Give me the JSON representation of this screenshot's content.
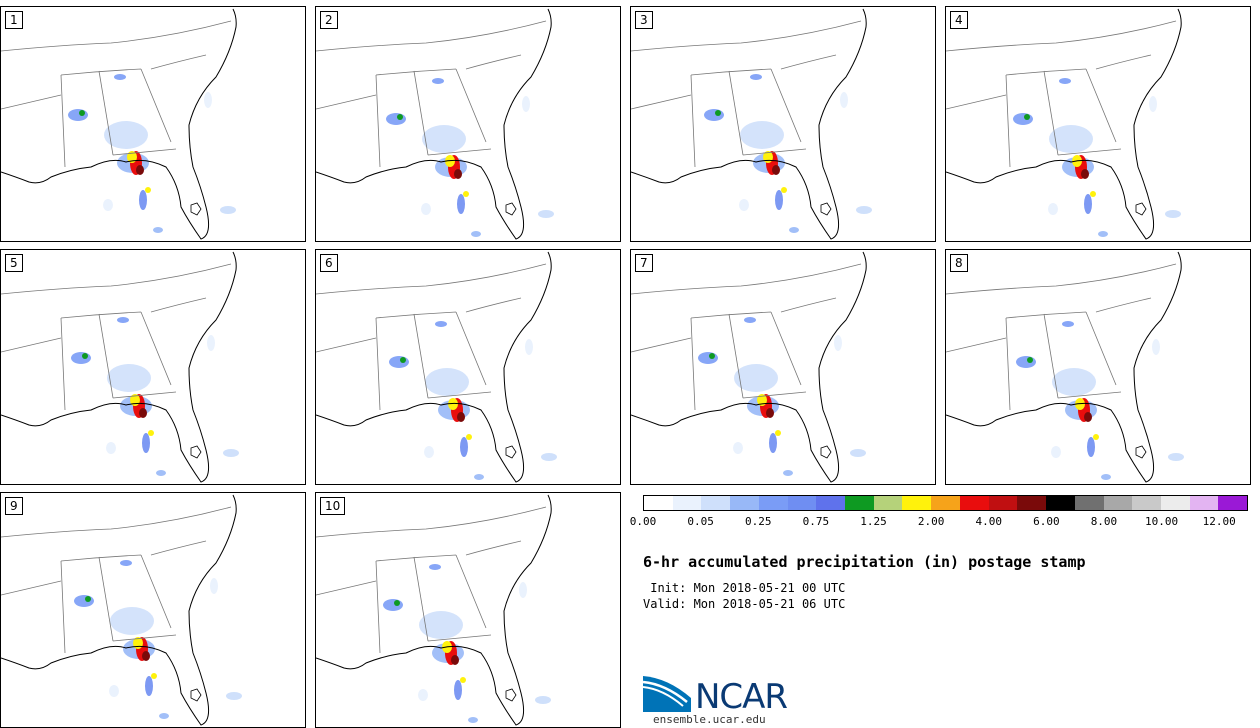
{
  "panels": [
    {
      "label": "1"
    },
    {
      "label": "2"
    },
    {
      "label": "3"
    },
    {
      "label": "4"
    },
    {
      "label": "5"
    },
    {
      "label": "6"
    },
    {
      "label": "7"
    },
    {
      "label": "8"
    },
    {
      "label": "9"
    },
    {
      "label": "10"
    }
  ],
  "colorbar": {
    "colors": [
      "#ffffff",
      "#eaf2fd",
      "#cfe0fb",
      "#98b8f7",
      "#7a9cf6",
      "#6f8ef2",
      "#5f72ec",
      "#0e9a22",
      "#b5d27a",
      "#fff20c",
      "#f6a31a",
      "#e90d0d",
      "#c00f11",
      "#7a0a0a",
      "#000000",
      "#707070",
      "#a8a8a8",
      "#c9c9c9",
      "#ececec",
      "#e3b4f2",
      "#9a19d6"
    ],
    "tick_labels": [
      "0.00",
      "0.05",
      "0.25",
      "0.75",
      "1.25",
      "2.00",
      "4.00",
      "6.00",
      "8.00",
      "10.00",
      "12.00"
    ]
  },
  "title": "6-hr accumulated precipitation (in) postage stamp",
  "init_line": " Init: Mon 2018-05-21 00 UTC",
  "valid_line": "Valid: Mon 2018-05-21 06 UTC",
  "logo_text": "NCAR",
  "logo_url": "ensemble.ucar.edu"
}
